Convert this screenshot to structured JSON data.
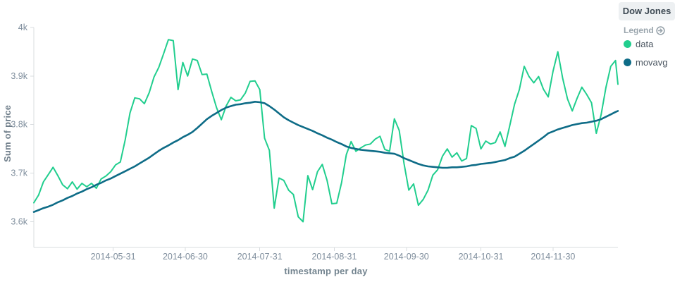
{
  "panel": {
    "title": "Dow Jones"
  },
  "legend": {
    "toggle_label": "Legend",
    "toggle_icon": "arrow-circle-right-icon",
    "items": [
      {
        "label": "data",
        "color": "#21ce8e"
      },
      {
        "label": "movavg",
        "color": "#0e6c87"
      }
    ]
  },
  "colors": {
    "data_series": "#21ce8e",
    "movavg_series": "#0e6c87",
    "axis_line": "#d8dcdf",
    "tick_label": "#7e8d9c",
    "axis_title": "#6f7e8a",
    "panel_title_bg": "#edf0f2",
    "panel_title_text": "#3e4a54"
  },
  "chart_data": {
    "type": "line",
    "title": "",
    "xlabel": "timestamp per day",
    "ylabel": "Sum of price",
    "legend_position": "right",
    "grid": false,
    "x_start_date": "2014-04-28",
    "x_end_date": "2014-12-27",
    "x_step_days": 2,
    "x_domain_days": 243,
    "x_ticks": [
      {
        "label": "2014-05-31",
        "day": 33
      },
      {
        "label": "2014-06-30",
        "day": 63
      },
      {
        "label": "2014-07-31",
        "day": 94
      },
      {
        "label": "2014-08-31",
        "day": 125
      },
      {
        "label": "2014-09-30",
        "day": 155
      },
      {
        "label": "2014-10-31",
        "day": 186
      },
      {
        "label": "2014-11-30",
        "day": 216
      }
    ],
    "y_ticks": [
      {
        "label": "3.6k",
        "value": 3.6
      },
      {
        "label": "3.7k",
        "value": 3.7
      },
      {
        "label": "3.8k",
        "value": 3.8
      },
      {
        "label": "3.9k",
        "value": 3.9
      },
      {
        "label": "4k",
        "value": 4.0
      }
    ],
    "ylim": [
      3.547,
      4.013
    ],
    "series": [
      {
        "name": "data",
        "color": "#21ce8e",
        "values": [
          3.639,
          3.655,
          3.682,
          3.697,
          3.712,
          3.695,
          3.676,
          3.668,
          3.682,
          3.667,
          3.679,
          3.672,
          3.679,
          3.669,
          3.688,
          3.694,
          3.703,
          3.717,
          3.723,
          3.768,
          3.824,
          3.855,
          3.853,
          3.843,
          3.866,
          3.898,
          3.918,
          3.946,
          3.975,
          3.973,
          3.872,
          3.928,
          3.9,
          3.935,
          3.932,
          3.903,
          3.904,
          3.868,
          3.835,
          3.81,
          3.838,
          3.856,
          3.849,
          3.851,
          3.865,
          3.889,
          3.89,
          3.872,
          3.772,
          3.747,
          3.628,
          3.69,
          3.685,
          3.665,
          3.656,
          3.61,
          3.6,
          3.695,
          3.666,
          3.703,
          3.718,
          3.685,
          3.637,
          3.638,
          3.68,
          3.738,
          3.765,
          3.745,
          3.752,
          3.758,
          3.76,
          3.77,
          3.776,
          3.749,
          3.745,
          3.812,
          3.788,
          3.72,
          3.665,
          3.678,
          3.634,
          3.646,
          3.665,
          3.696,
          3.707,
          3.735,
          3.75,
          3.733,
          3.742,
          3.725,
          3.73,
          3.798,
          3.792,
          3.75,
          3.766,
          3.76,
          3.763,
          3.785,
          3.755,
          3.798,
          3.842,
          3.872,
          3.92,
          3.899,
          3.886,
          3.899,
          3.873,
          3.857,
          3.91,
          3.95,
          3.896,
          3.853,
          3.828,
          3.854,
          3.877,
          3.862,
          3.845,
          3.782,
          3.82,
          3.876,
          3.92,
          3.932,
          3.883
        ]
      },
      {
        "name": "movavg",
        "color": "#0e6c87",
        "values": [
          3.62,
          3.624,
          3.628,
          3.631,
          3.635,
          3.64,
          3.644,
          3.649,
          3.653,
          3.658,
          3.662,
          3.667,
          3.671,
          3.676,
          3.68,
          3.685,
          3.689,
          3.694,
          3.699,
          3.704,
          3.709,
          3.714,
          3.72,
          3.726,
          3.732,
          3.739,
          3.746,
          3.752,
          3.757,
          3.763,
          3.768,
          3.774,
          3.779,
          3.785,
          3.793,
          3.802,
          3.811,
          3.818,
          3.824,
          3.83,
          3.835,
          3.838,
          3.841,
          3.842,
          3.844,
          3.845,
          3.847,
          3.846,
          3.844,
          3.838,
          3.831,
          3.823,
          3.815,
          3.809,
          3.804,
          3.799,
          3.795,
          3.791,
          3.787,
          3.782,
          3.778,
          3.773,
          3.769,
          3.764,
          3.76,
          3.755,
          3.752,
          3.75,
          3.748,
          3.747,
          3.746,
          3.745,
          3.744,
          3.742,
          3.741,
          3.74,
          3.736,
          3.731,
          3.727,
          3.723,
          3.719,
          3.716,
          3.714,
          3.713,
          3.712,
          3.711,
          3.711,
          3.712,
          3.712,
          3.713,
          3.714,
          3.716,
          3.717,
          3.719,
          3.72,
          3.721,
          3.723,
          3.725,
          3.727,
          3.731,
          3.734,
          3.74,
          3.746,
          3.753,
          3.76,
          3.767,
          3.774,
          3.782,
          3.786,
          3.79,
          3.793,
          3.796,
          3.799,
          3.801,
          3.803,
          3.804,
          3.806,
          3.808,
          3.811,
          3.816,
          3.821,
          3.826,
          3.828
        ]
      }
    ]
  }
}
